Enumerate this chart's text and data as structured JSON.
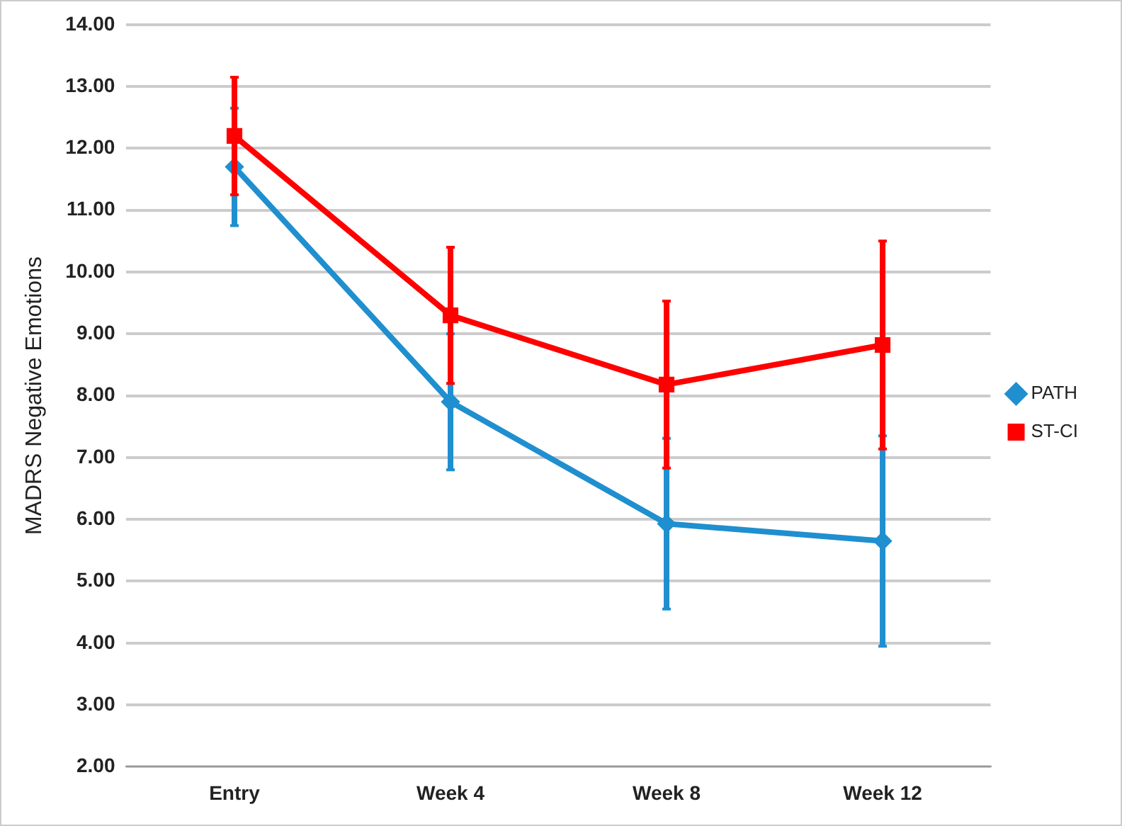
{
  "chart_data": {
    "type": "line",
    "ylabel": "MADRS Negative Emotions",
    "categories": [
      "Entry",
      "Week 4",
      "Week 8",
      "Week 12"
    ],
    "series": [
      {
        "name": "PATH",
        "color": "#1f8fcf",
        "marker": "diamond",
        "values": [
          11.7,
          7.9,
          5.93,
          5.65
        ],
        "errors": [
          0.95,
          1.1,
          1.38,
          1.7
        ]
      },
      {
        "name": "ST-CI",
        "color": "#ff0000",
        "marker": "square",
        "values": [
          12.2,
          9.3,
          8.18,
          8.82
        ],
        "errors": [
          0.95,
          1.1,
          1.35,
          1.68
        ]
      }
    ],
    "ylim": [
      2,
      14
    ],
    "yticks": [
      {
        "value": 2,
        "label": "2.00"
      },
      {
        "value": 3,
        "label": "3.00"
      },
      {
        "value": 4,
        "label": "4.00"
      },
      {
        "value": 5,
        "label": "5.00"
      },
      {
        "value": 6,
        "label": "6.00"
      },
      {
        "value": 7,
        "label": "7.00"
      },
      {
        "value": 8,
        "label": "8.00"
      },
      {
        "value": 9,
        "label": "9.00"
      },
      {
        "value": 10,
        "label": "10.00"
      },
      {
        "value": 11,
        "label": "11.00"
      },
      {
        "value": 12,
        "label": "12.00"
      },
      {
        "value": 13,
        "label": "13.00"
      },
      {
        "value": 14,
        "label": "14.00"
      }
    ],
    "grid": "y",
    "legend": "right"
  }
}
